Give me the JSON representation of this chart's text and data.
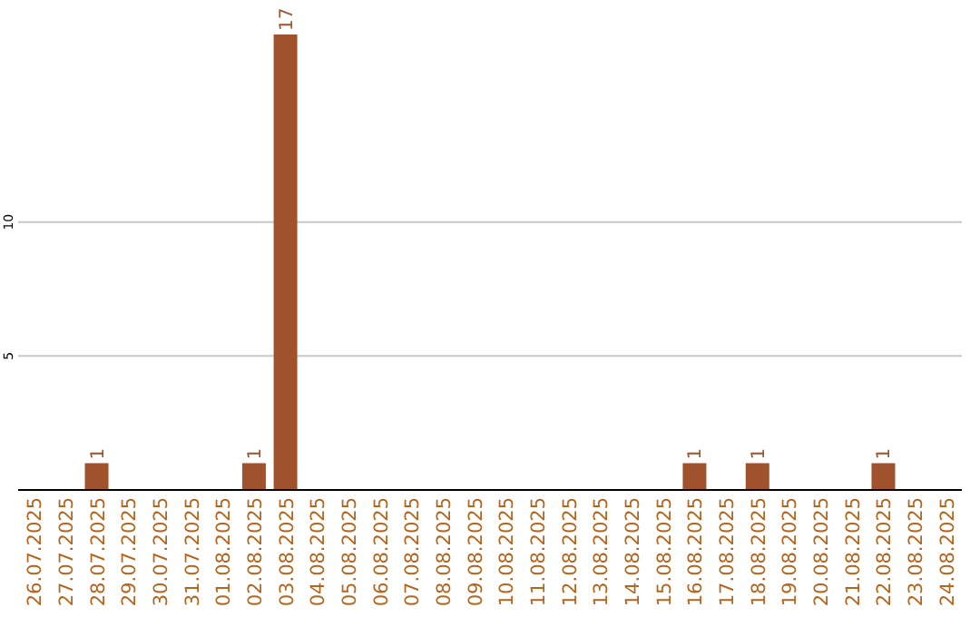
{
  "chart_data": {
    "type": "bar",
    "categories": [
      "26.07.2025",
      "27.07.2025",
      "28.07.2025",
      "29.07.2025",
      "30.07.2025",
      "31.07.2025",
      "01.08.2025",
      "02.08.2025",
      "03.08.2025",
      "04.08.2025",
      "05.08.2025",
      "06.08.2025",
      "07.08.2025",
      "08.08.2025",
      "09.08.2025",
      "10.08.2025",
      "11.08.2025",
      "12.08.2025",
      "13.08.2025",
      "14.08.2025",
      "15.08.2025",
      "16.08.2025",
      "17.08.2025",
      "18.08.2025",
      "19.08.2025",
      "20.08.2025",
      "21.08.2025",
      "22.08.2025",
      "23.08.2025",
      "24.08.2025"
    ],
    "values": [
      0,
      0,
      1,
      0,
      0,
      0,
      0,
      1,
      17,
      0,
      0,
      0,
      0,
      0,
      0,
      0,
      0,
      0,
      0,
      0,
      0,
      1,
      0,
      1,
      0,
      0,
      0,
      1,
      0,
      0
    ],
    "value_labels": [
      null,
      null,
      "1",
      null,
      null,
      null,
      null,
      "1",
      "17",
      null,
      null,
      null,
      null,
      null,
      null,
      null,
      null,
      null,
      null,
      null,
      null,
      "1",
      null,
      "1",
      null,
      null,
      null,
      "1",
      null,
      null
    ],
    "color": "#a0522d",
    "ylim": [
      0,
      17
    ],
    "yticks": [
      5,
      10
    ],
    "grid": "y"
  }
}
